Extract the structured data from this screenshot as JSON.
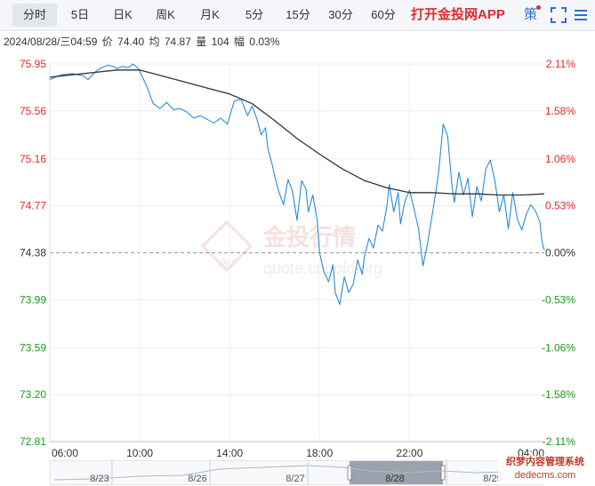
{
  "tabs": [
    {
      "label": "分时",
      "active": true
    },
    {
      "label": "5日",
      "active": false
    },
    {
      "label": "日K",
      "active": false
    },
    {
      "label": "周K",
      "active": false
    },
    {
      "label": "月K",
      "active": false
    },
    {
      "label": "5分",
      "active": false
    },
    {
      "label": "15分",
      "active": false
    },
    {
      "label": "30分",
      "active": false
    },
    {
      "label": "60分",
      "active": false
    }
  ],
  "toolbar": {
    "promo_label": "打开金投网APP",
    "strategy_label": "策",
    "fullscreen_icon": "fullscreen-icon",
    "menu_icon": "menu-icon"
  },
  "info": {
    "datetime": "2024/08/28/三04:59",
    "price_label": "价",
    "price": "74.40",
    "avg_label": "均",
    "avg": "74.87",
    "volume_label": "量",
    "volume": "104",
    "change_label": "幅",
    "change": "0.03%"
  },
  "watermark": {
    "cn": "金投行情",
    "url": "quote.cngold.org",
    "logo": "Au"
  },
  "navigator": {
    "labels": [
      "8/23",
      "8/26",
      "8/27",
      "8/28",
      "8/29"
    ]
  },
  "site_watermark": {
    "line1": "织梦内容管理系统",
    "line2": "dedecms.com"
  },
  "colors": {
    "up": "#e5292c",
    "down": "#1a9a1a",
    "price_line": "#2b8bd6",
    "avg_line": "#333333",
    "base_line": "#999999"
  },
  "chart_data": {
    "type": "line",
    "title": "",
    "base_value": 74.38,
    "ylim": [
      72.81,
      75.95
    ],
    "y_ticks": [
      "75.95",
      "75.56",
      "75.16",
      "74.77",
      "74.38",
      "73.99",
      "73.59",
      "73.20",
      "72.81"
    ],
    "pct_ticks": [
      "2.11%",
      "1.58%",
      "1.06%",
      "0.53%",
      "0.00%",
      "-0.53%",
      "-1.06%",
      "-1.58%",
      "-2.11%"
    ],
    "x_ticks": [
      "06:00",
      "10:00",
      "14:00",
      "18:00",
      "22:00",
      "04:00"
    ],
    "x_hours": [
      0,
      4,
      8,
      12,
      16,
      22
    ],
    "xlim_hours": [
      0,
      22
    ],
    "series": [
      {
        "role": "price",
        "x": [
          0,
          0.5,
          1,
          1.5,
          1.7,
          2,
          2.3,
          2.6,
          2.8,
          3,
          3.2,
          3.5,
          3.7,
          3.9,
          4,
          4.3,
          4.6,
          4.9,
          5.2,
          5.5,
          5.8,
          6.1,
          6.4,
          6.7,
          7,
          7.3,
          7.6,
          7.9,
          8.2,
          8.5,
          8.8,
          9,
          9.2,
          9.4,
          9.6,
          9.7,
          9.9,
          10,
          10.2,
          10.4,
          10.6,
          10.8,
          11,
          11.2,
          11.4,
          11.5,
          11.7,
          11.9,
          12,
          12.2,
          12.4,
          12.6,
          12.7,
          12.9,
          13.1,
          13.3,
          13.5,
          13.7,
          13.9,
          14,
          14.2,
          14.4,
          14.6,
          14.8,
          15,
          15.1,
          15.3,
          15.5,
          15.6,
          15.8,
          16,
          16.2,
          16.4,
          16.5,
          16.6,
          16.8,
          17,
          17.2,
          17.3,
          17.5,
          17.7,
          17.9,
          18,
          18.2,
          18.4,
          18.6,
          18.8,
          19,
          19.2,
          19.4,
          19.6,
          19.8,
          20,
          20.2,
          20.4,
          20.6,
          20.8,
          21,
          21.2,
          21.4,
          21.6,
          21.8,
          21.9,
          22
        ],
        "y": [
          75.82,
          75.86,
          75.87,
          75.85,
          75.82,
          75.88,
          75.92,
          75.94,
          75.93,
          75.91,
          75.93,
          75.92,
          75.95,
          75.92,
          75.89,
          75.77,
          75.62,
          75.58,
          75.63,
          75.57,
          75.58,
          75.55,
          75.5,
          75.52,
          75.49,
          75.46,
          75.5,
          75.45,
          75.64,
          75.66,
          75.52,
          75.6,
          75.5,
          75.36,
          75.42,
          75.25,
          75.11,
          75.02,
          74.88,
          74.78,
          74.99,
          74.89,
          74.65,
          74.98,
          74.91,
          74.72,
          74.86,
          74.65,
          74.38,
          74.22,
          74.14,
          74.28,
          74.05,
          73.95,
          74.18,
          74.05,
          74.12,
          74.32,
          74.2,
          74.35,
          74.5,
          74.42,
          74.61,
          74.56,
          74.77,
          74.95,
          74.72,
          74.88,
          74.62,
          74.81,
          74.9,
          74.75,
          74.58,
          74.43,
          74.27,
          74.45,
          74.68,
          74.92,
          75.05,
          75.45,
          75.35,
          74.92,
          74.8,
          75.05,
          74.86,
          75.0,
          74.68,
          74.93,
          74.81,
          75.08,
          75.15,
          74.98,
          74.72,
          74.86,
          74.58,
          74.88,
          74.66,
          74.57,
          74.7,
          74.78,
          74.73,
          74.64,
          74.47,
          74.4
        ]
      },
      {
        "role": "avg",
        "x": [
          0,
          1,
          2,
          3,
          4,
          5,
          6,
          7,
          8,
          9,
          10,
          11,
          12,
          13,
          14,
          15,
          16,
          17,
          18,
          19,
          20,
          21,
          22
        ],
        "y": [
          75.84,
          75.86,
          75.88,
          75.9,
          75.9,
          75.85,
          75.8,
          75.75,
          75.7,
          75.62,
          75.48,
          75.33,
          75.2,
          75.08,
          74.98,
          74.92,
          74.88,
          74.88,
          74.87,
          74.87,
          74.86,
          74.86,
          74.87
        ]
      }
    ]
  }
}
